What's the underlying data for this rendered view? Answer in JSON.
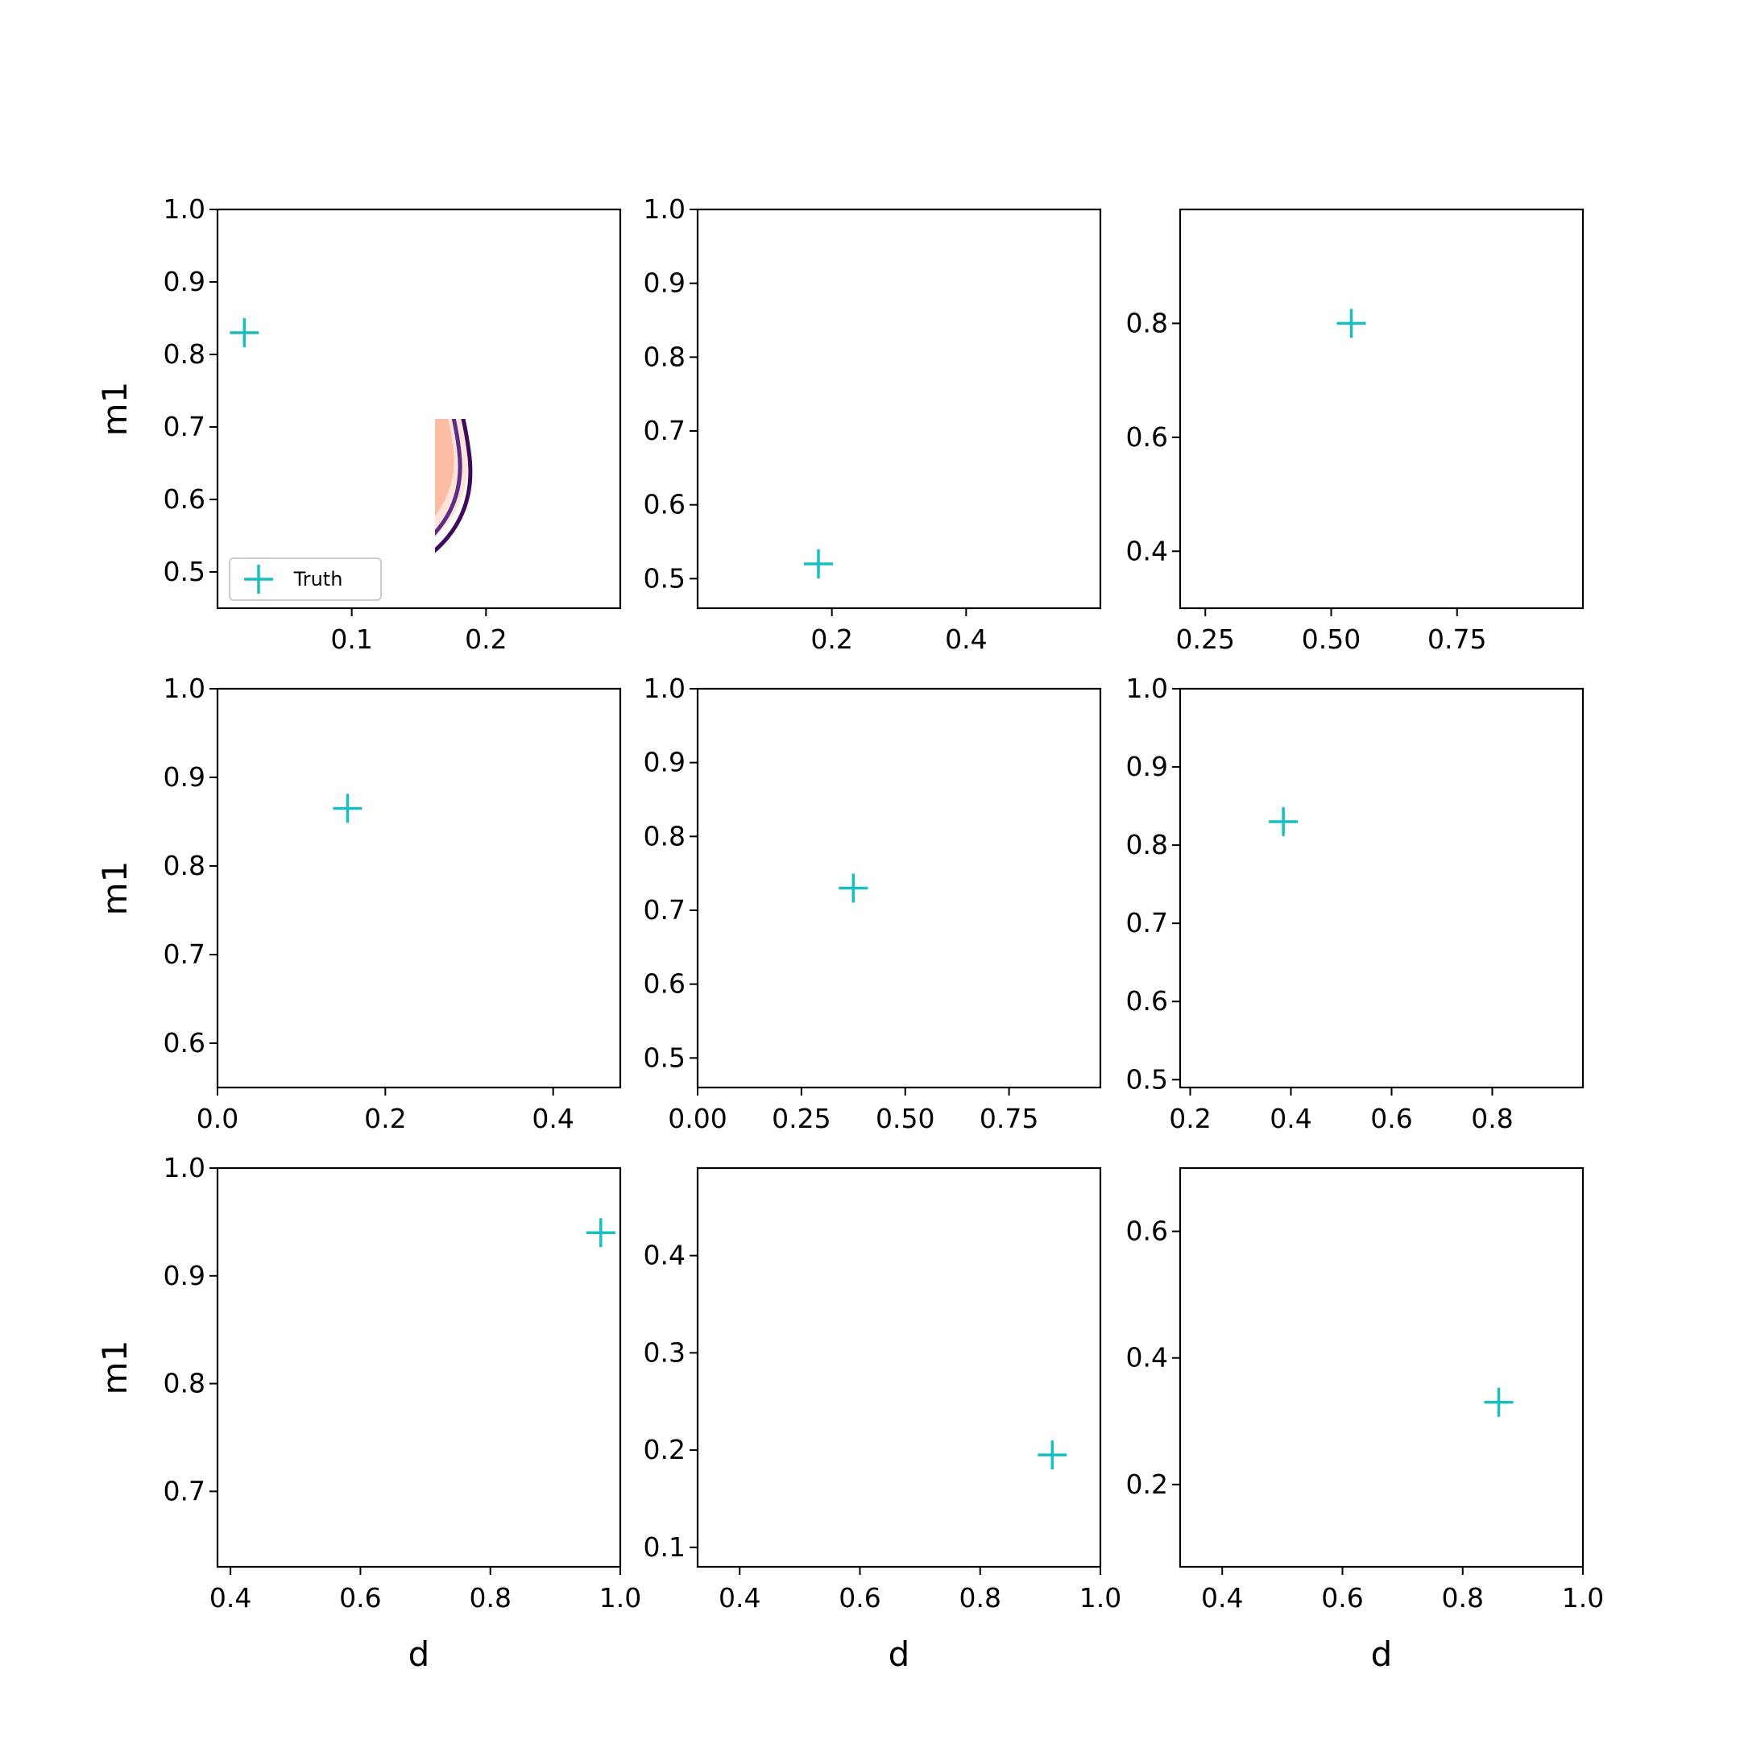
{
  "figure": {
    "xlabel": "d",
    "ylabel": "m1",
    "legend": {
      "label": "Truth",
      "location": "lower-left of first panel",
      "marker": "+",
      "color": "#17bfbf"
    }
  },
  "colors": {
    "fill_outer": "#fde3da",
    "fill_middle": "#fbbca3",
    "fill_inner": "#e3342a",
    "contour_dark": "#3d0a5c",
    "contour_mid": "#5b2d87",
    "contour_teal": "#2e7189",
    "truth": "#17bfbf"
  },
  "chart_data": [
    {
      "type": "contour",
      "row": 1,
      "col": 1,
      "show_xlabel": false,
      "show_ylabel": true,
      "legend": true,
      "xlim": [
        0.0,
        0.3
      ],
      "ylim": [
        0.45,
        1.0
      ],
      "xticks": [
        0.1,
        0.2
      ],
      "xtick_labels": [
        "0.1",
        "0.2"
      ],
      "yticks": [
        0.5,
        0.6,
        0.7,
        0.8,
        0.9,
        1.0
      ],
      "ytick_labels": [
        "0.5",
        "0.6",
        "0.7",
        "0.8",
        "0.9",
        "1.0"
      ],
      "truth": [
        0.02,
        0.83
      ]
    },
    {
      "type": "contour",
      "row": 1,
      "col": 2,
      "show_xlabel": false,
      "show_ylabel": false,
      "legend": false,
      "xlim": [
        0.0,
        0.6
      ],
      "ylim": [
        0.46,
        1.0
      ],
      "xticks": [
        0.2,
        0.4
      ],
      "xtick_labels": [
        "0.2",
        "0.4"
      ],
      "yticks": [
        0.5,
        0.6,
        0.7,
        0.8,
        0.9,
        1.0
      ],
      "ytick_labels": [
        "0.5",
        "0.6",
        "0.7",
        "0.8",
        "0.9",
        "1.0"
      ],
      "truth": [
        0.18,
        0.52
      ]
    },
    {
      "type": "contour",
      "row": 1,
      "col": 3,
      "show_xlabel": false,
      "show_ylabel": false,
      "legend": false,
      "xlim": [
        0.2,
        1.0
      ],
      "ylim": [
        0.3,
        1.0
      ],
      "xticks": [
        0.25,
        0.5,
        0.75
      ],
      "xtick_labels": [
        "0.25",
        "0.50",
        "0.75"
      ],
      "yticks": [
        0.4,
        0.6,
        0.8
      ],
      "ytick_labels": [
        "0.4",
        "0.6",
        "0.8"
      ],
      "truth": [
        0.54,
        0.8
      ]
    },
    {
      "type": "contour",
      "row": 2,
      "col": 1,
      "show_xlabel": false,
      "show_ylabel": true,
      "legend": false,
      "xlim": [
        0.0,
        0.48
      ],
      "ylim": [
        0.55,
        1.0
      ],
      "xticks": [
        0.0,
        0.2,
        0.4
      ],
      "xtick_labels": [
        "0.0",
        "0.2",
        "0.4"
      ],
      "yticks": [
        0.6,
        0.7,
        0.8,
        0.9,
        1.0
      ],
      "ytick_labels": [
        "0.6",
        "0.7",
        "0.8",
        "0.9",
        "1.0"
      ],
      "truth": [
        0.155,
        0.865
      ]
    },
    {
      "type": "contour",
      "row": 2,
      "col": 2,
      "show_xlabel": false,
      "show_ylabel": false,
      "legend": false,
      "xlim": [
        0.0,
        0.97
      ],
      "ylim": [
        0.46,
        1.0
      ],
      "xticks": [
        0.0,
        0.25,
        0.5,
        0.75
      ],
      "xtick_labels": [
        "0.00",
        "0.25",
        "0.50",
        "0.75"
      ],
      "yticks": [
        0.5,
        0.6,
        0.7,
        0.8,
        0.9,
        1.0
      ],
      "ytick_labels": [
        "0.5",
        "0.6",
        "0.7",
        "0.8",
        "0.9",
        "1.0"
      ],
      "truth": [
        0.375,
        0.73
      ]
    },
    {
      "type": "contour",
      "row": 2,
      "col": 3,
      "show_xlabel": false,
      "show_ylabel": false,
      "legend": false,
      "xlim": [
        0.18,
        0.98
      ],
      "ylim": [
        0.49,
        1.0
      ],
      "xticks": [
        0.2,
        0.4,
        0.6,
        0.8
      ],
      "xtick_labels": [
        "0.2",
        "0.4",
        "0.6",
        "0.8"
      ],
      "yticks": [
        0.5,
        0.6,
        0.7,
        0.8,
        0.9,
        1.0
      ],
      "ytick_labels": [
        "0.5",
        "0.6",
        "0.7",
        "0.8",
        "0.9",
        "1.0"
      ],
      "truth": [
        0.385,
        0.83
      ]
    },
    {
      "type": "contour",
      "row": 3,
      "col": 1,
      "show_xlabel": true,
      "show_ylabel": true,
      "legend": false,
      "xlim": [
        0.38,
        1.0
      ],
      "ylim": [
        0.63,
        1.0
      ],
      "xticks": [
        0.4,
        0.6,
        0.8,
        1.0
      ],
      "xtick_labels": [
        "0.4",
        "0.6",
        "0.8",
        "1.0"
      ],
      "yticks": [
        0.7,
        0.8,
        0.9,
        1.0
      ],
      "ytick_labels": [
        "0.7",
        "0.8",
        "0.9",
        "1.0"
      ],
      "truth": [
        0.97,
        0.94
      ]
    },
    {
      "type": "contour",
      "row": 3,
      "col": 2,
      "show_xlabel": true,
      "show_ylabel": false,
      "legend": false,
      "xlim": [
        0.33,
        1.0
      ],
      "ylim": [
        0.08,
        0.49
      ],
      "xticks": [
        0.4,
        0.6,
        0.8,
        1.0
      ],
      "xtick_labels": [
        "0.4",
        "0.6",
        "0.8",
        "1.0"
      ],
      "yticks": [
        0.1,
        0.2,
        0.3,
        0.4
      ],
      "ytick_labels": [
        "0.1",
        "0.2",
        "0.3",
        "0.4"
      ],
      "truth": [
        0.92,
        0.195
      ]
    },
    {
      "type": "contour",
      "row": 3,
      "col": 3,
      "show_xlabel": true,
      "show_ylabel": false,
      "legend": false,
      "xlim": [
        0.33,
        1.0
      ],
      "ylim": [
        0.07,
        0.7
      ],
      "xticks": [
        0.4,
        0.6,
        0.8,
        1.0
      ],
      "xtick_labels": [
        "0.4",
        "0.6",
        "0.8",
        "1.0"
      ],
      "yticks": [
        0.2,
        0.4,
        0.6
      ],
      "ytick_labels": [
        "0.2",
        "0.4",
        "0.6"
      ],
      "truth": [
        0.86,
        0.33
      ]
    }
  ]
}
